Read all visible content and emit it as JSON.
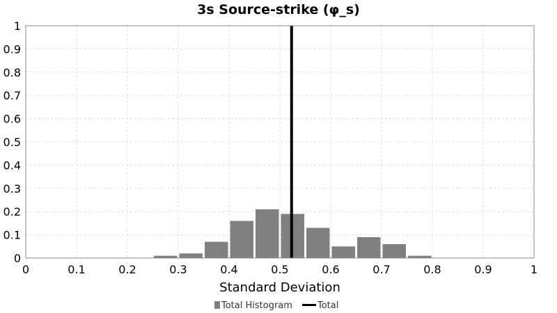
{
  "chart_data": {
    "type": "bar",
    "title": "3s Source-strike (φ_s)",
    "xlabel": "Standard Deviation",
    "ylabel": "",
    "xlim": [
      0,
      1
    ],
    "ylim": [
      0,
      1
    ],
    "x_ticks": [
      "0",
      "0.1",
      "0.2",
      "0.3",
      "0.4",
      "0.5",
      "0.6",
      "0.7",
      "0.8",
      "0.9",
      "1"
    ],
    "y_ticks": [
      "0",
      "0.1",
      "0.2",
      "0.3",
      "0.4",
      "0.5",
      "0.6",
      "0.7",
      "0.8",
      "0.9",
      "1"
    ],
    "grid": true,
    "legend_position": "bottom-center",
    "series": [
      {
        "name": "Total Histogram",
        "kind": "histogram",
        "color": "#808080",
        "bin_width": 0.05,
        "bins": [
          {
            "x0": 0.25,
            "x1": 0.3,
            "value": 0.01
          },
          {
            "x0": 0.3,
            "x1": 0.35,
            "value": 0.02
          },
          {
            "x0": 0.35,
            "x1": 0.4,
            "value": 0.07
          },
          {
            "x0": 0.4,
            "x1": 0.45,
            "value": 0.16
          },
          {
            "x0": 0.45,
            "x1": 0.5,
            "value": 0.21
          },
          {
            "x0": 0.5,
            "x1": 0.55,
            "value": 0.19
          },
          {
            "x0": 0.55,
            "x1": 0.6,
            "value": 0.13
          },
          {
            "x0": 0.6,
            "x1": 0.65,
            "value": 0.05
          },
          {
            "x0": 0.65,
            "x1": 0.7,
            "value": 0.09
          },
          {
            "x0": 0.7,
            "x1": 0.75,
            "value": 0.06
          },
          {
            "x0": 0.75,
            "x1": 0.8,
            "value": 0.01
          }
        ]
      },
      {
        "name": "Total",
        "kind": "vertical-line",
        "color": "#000000",
        "x": 0.523
      }
    ]
  }
}
